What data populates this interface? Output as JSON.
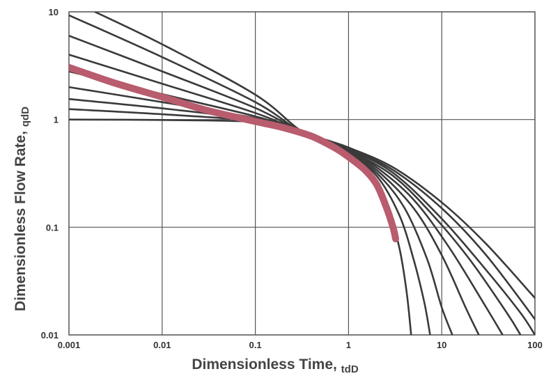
{
  "chart_data": {
    "type": "line",
    "xlabel": "Dimensionless Time, ",
    "xlabel_sub": "tdD",
    "ylabel": "Dimensionless Flow Rate, ",
    "ylabel_sub": "qdD",
    "x_scale": "log",
    "y_scale": "log",
    "xlim": [
      0.001,
      100
    ],
    "ylim": [
      0.01,
      10
    ],
    "x_ticks": [
      {
        "value": 0.001,
        "label": "0.001"
      },
      {
        "value": 0.01,
        "label": "0.01"
      },
      {
        "value": 0.1,
        "label": "0.1"
      },
      {
        "value": 1,
        "label": "1"
      },
      {
        "value": 10,
        "label": "10"
      },
      {
        "value": 100,
        "label": "100"
      }
    ],
    "y_ticks": [
      {
        "value": 0.01,
        "label": "0.01"
      },
      {
        "value": 0.1,
        "label": "0.1"
      },
      {
        "value": 1,
        "label": "1"
      },
      {
        "value": 10,
        "label": "10"
      }
    ],
    "grid": true,
    "legend": "none",
    "colors": {
      "type_curves": "#3a3a3a",
      "matched_curve": "#b85c6e",
      "grid": "#555555"
    },
    "series": [
      {
        "values": [
          [
            0.001,
            1.0
          ],
          [
            0.01,
            0.99
          ],
          [
            0.1,
            0.95
          ],
          [
            0.3,
            0.8
          ],
          [
            0.6,
            0.6
          ],
          [
            1,
            0.47
          ],
          [
            1.5,
            0.34
          ],
          [
            2.5,
            0.18
          ],
          [
            3.5,
            0.065
          ],
          [
            4.2,
            0.025
          ],
          [
            4.7,
            0.01
          ]
        ]
      },
      {
        "values": [
          [
            0.001,
            1.25
          ],
          [
            0.01,
            1.12
          ],
          [
            0.1,
            0.97
          ],
          [
            0.3,
            0.8
          ],
          [
            0.6,
            0.61
          ],
          [
            1,
            0.48
          ],
          [
            2,
            0.3
          ],
          [
            3.5,
            0.13
          ],
          [
            5,
            0.05
          ],
          [
            6.5,
            0.02
          ],
          [
            7.5,
            0.01
          ]
        ]
      },
      {
        "values": [
          [
            0.001,
            1.55
          ],
          [
            0.01,
            1.27
          ],
          [
            0.1,
            1.0
          ],
          [
            0.3,
            0.8
          ],
          [
            0.6,
            0.62
          ],
          [
            1,
            0.49
          ],
          [
            2,
            0.32
          ],
          [
            4,
            0.15
          ],
          [
            7,
            0.05
          ],
          [
            10,
            0.018
          ],
          [
            13,
            0.01
          ]
        ]
      },
      {
        "values": [
          [
            0.001,
            2.0
          ],
          [
            0.01,
            1.45
          ],
          [
            0.1,
            1.03
          ],
          [
            0.3,
            0.8
          ],
          [
            0.6,
            0.62
          ],
          [
            1,
            0.5
          ],
          [
            2,
            0.34
          ],
          [
            5,
            0.15
          ],
          [
            10,
            0.055
          ],
          [
            18,
            0.018
          ],
          [
            25,
            0.01
          ]
        ]
      },
      {
        "values": [
          [
            0.001,
            2.8
          ],
          [
            0.01,
            1.72
          ],
          [
            0.1,
            1.07
          ],
          [
            0.3,
            0.79
          ],
          [
            0.6,
            0.62
          ],
          [
            1,
            0.51
          ],
          [
            2,
            0.36
          ],
          [
            5,
            0.18
          ],
          [
            12,
            0.065
          ],
          [
            30,
            0.018
          ],
          [
            45,
            0.01
          ]
        ]
      },
      {
        "values": [
          [
            0.001,
            4.0
          ],
          [
            0.01,
            2.15
          ],
          [
            0.1,
            1.15
          ],
          [
            0.3,
            0.78
          ],
          [
            0.6,
            0.62
          ],
          [
            1,
            0.52
          ],
          [
            3,
            0.3
          ],
          [
            8,
            0.13
          ],
          [
            20,
            0.05
          ],
          [
            50,
            0.016
          ],
          [
            70,
            0.01
          ]
        ]
      },
      {
        "values": [
          [
            0.001,
            6.0
          ],
          [
            0.01,
            2.8
          ],
          [
            0.1,
            1.28
          ],
          [
            0.3,
            0.78
          ],
          [
            0.6,
            0.63
          ],
          [
            1,
            0.53
          ],
          [
            3,
            0.32
          ],
          [
            10,
            0.12
          ],
          [
            30,
            0.04
          ],
          [
            70,
            0.016
          ],
          [
            100,
            0.01
          ]
        ]
      },
      {
        "values": [
          [
            0.001,
            9.3
          ],
          [
            0.01,
            3.8
          ],
          [
            0.1,
            1.45
          ],
          [
            0.3,
            0.78
          ],
          [
            0.6,
            0.63
          ],
          [
            1,
            0.54
          ],
          [
            3,
            0.34
          ],
          [
            10,
            0.15
          ],
          [
            30,
            0.055
          ],
          [
            100,
            0.014
          ]
        ]
      },
      {
        "values": [
          [
            0.0019,
            10.0
          ],
          [
            0.01,
            5.0
          ],
          [
            0.1,
            1.7
          ],
          [
            0.3,
            0.8
          ],
          [
            0.6,
            0.64
          ],
          [
            1,
            0.55
          ],
          [
            3,
            0.36
          ],
          [
            10,
            0.17
          ],
          [
            30,
            0.07
          ],
          [
            100,
            0.022
          ]
        ]
      },
      {
        "values": [
          [
            0.001,
            3.05
          ],
          [
            0.003,
            2.2
          ],
          [
            0.01,
            1.62
          ],
          [
            0.03,
            1.22
          ],
          [
            0.1,
            0.96
          ],
          [
            0.2,
            0.84
          ],
          [
            0.4,
            0.7
          ],
          [
            0.7,
            0.55
          ],
          [
            1,
            0.45
          ],
          [
            1.5,
            0.34
          ],
          [
            2,
            0.25
          ],
          [
            2.5,
            0.16
          ],
          [
            3,
            0.1
          ],
          [
            3.2,
            0.078
          ]
        ],
        "highlight": true
      }
    ]
  }
}
